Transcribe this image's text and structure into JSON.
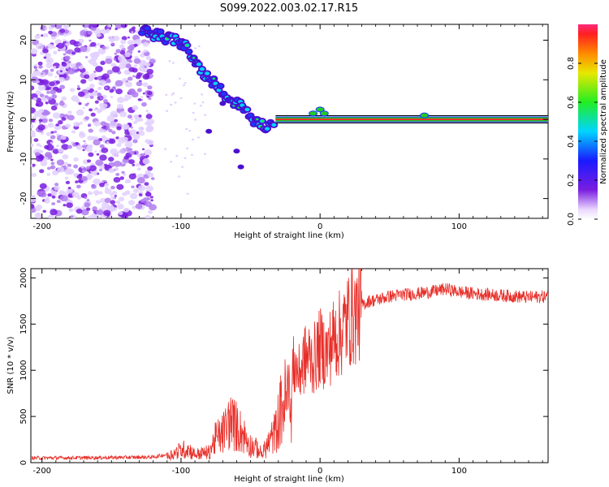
{
  "figure_title": "S099.2022.003.02.17.R15",
  "colors": {
    "snr_line": "#e8302a",
    "spectrum_dots": "#8a2be2",
    "carrier_red": "#e8302a",
    "carrier_green": "#22cc22"
  },
  "chart_data": [
    {
      "type": "heatmap",
      "xlabel": "Height of straight line (km)",
      "ylabel": "Frequency (Hz)",
      "xlim": [
        -208,
        164
      ],
      "ylim": [
        -25,
        24
      ],
      "xticks": [
        -200,
        -100,
        0,
        100
      ],
      "yticks": [
        -20,
        -10,
        0,
        10,
        20
      ],
      "colorbar": {
        "label": "Normalized spectral amplitude",
        "range": [
          0,
          1
        ],
        "ticks": [
          "0.0",
          "0.2",
          "0.4",
          "0.6",
          "0.8"
        ],
        "colormap": "rainbow"
      },
      "carrier_track": {
        "x": [
          -125,
          -115,
          -105,
          -95,
          -85,
          -75,
          -65,
          -55,
          -45,
          -38,
          -30,
          -20,
          -10,
          0,
          10,
          20,
          40,
          60,
          80,
          100,
          120,
          140,
          164
        ],
        "freq": [
          22,
          21,
          20,
          18,
          12,
          9,
          5,
          3,
          -1,
          -2,
          0,
          0,
          1,
          2,
          0,
          0,
          0,
          0,
          0,
          0,
          0,
          0,
          0
        ]
      },
      "noise_region": {
        "x_from": -208,
        "x_to": -120,
        "freq_range": [
          -25,
          24
        ]
      }
    },
    {
      "type": "line",
      "xlabel": "Height of straight line (km)",
      "ylabel": "SNR (10 * v/v)",
      "xlim": [
        -208,
        164
      ],
      "ylim": [
        0,
        2100
      ],
      "xticks": [
        -200,
        -100,
        0,
        100
      ],
      "yticks": [
        0,
        500,
        1000,
        1500,
        2000
      ],
      "envelope": {
        "x": [
          -208,
          -150,
          -120,
          -110,
          -100,
          -95,
          -90,
          -80,
          -75,
          -70,
          -65,
          -60,
          -55,
          -50,
          -45,
          -42,
          -38,
          -35,
          -32,
          -28,
          -25,
          -22,
          -18,
          -15,
          -12,
          -8,
          -5,
          0,
          5,
          10,
          15,
          20,
          25,
          30,
          35,
          40,
          50,
          60,
          70,
          80,
          90,
          100,
          110,
          120,
          130,
          140,
          150,
          164
        ],
        "y": [
          50,
          55,
          60,
          90,
          180,
          200,
          120,
          150,
          350,
          420,
          600,
          520,
          400,
          250,
          200,
          120,
          250,
          350,
          450,
          780,
          900,
          950,
          1050,
          950,
          1100,
          1150,
          1100,
          1250,
          1180,
          1350,
          1400,
          1550,
          1600,
          1700,
          1750,
          1760,
          1800,
          1820,
          1830,
          1850,
          1880,
          1850,
          1830,
          1820,
          1810,
          1800,
          1790,
          1800
        ]
      }
    }
  ]
}
